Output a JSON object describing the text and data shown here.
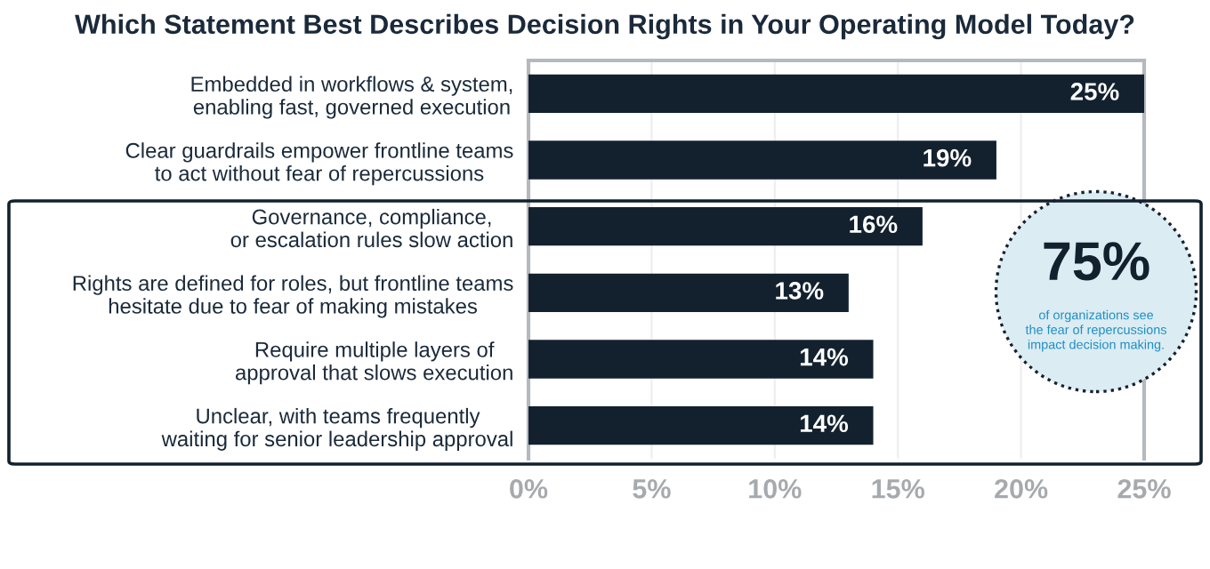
{
  "chart_data": {
    "type": "bar",
    "orientation": "horizontal",
    "title": "Which Statement Best Describes Decision Rights in Your Operating Model Today?",
    "categories": [
      "Embedded in workflows & system,\nenabling fast, governed execution",
      "Clear guardrails empower frontline teams\nto act without fear of repercussions",
      "Governance, compliance,\nor escalation rules slow action",
      "Rights are defined for roles, but frontline teams\nhesitate due to fear of making mistakes",
      "Require multiple layers of\napproval that slows execution",
      "Unclear, with teams frequently\nwaiting for senior leadership approval"
    ],
    "values": [
      25,
      19,
      16,
      13,
      14,
      14
    ],
    "value_labels": [
      "25%",
      "19%",
      "16%",
      "13%",
      "14%",
      "14%"
    ],
    "color": "#13212f",
    "xlim": [
      0,
      25
    ],
    "xticks": [
      {
        "value": 0,
        "label": "0%"
      },
      {
        "value": 5,
        "label": "5%"
      },
      {
        "value": 10,
        "label": "10%"
      },
      {
        "value": 15,
        "label": "15%"
      },
      {
        "value": 20,
        "label": "20%"
      },
      {
        "value": 25,
        "label": "25%"
      }
    ],
    "grid": "x",
    "annotations": [
      "75%",
      "of organizations see\nthe fear of repercussions\nimpact decision making."
    ]
  }
}
